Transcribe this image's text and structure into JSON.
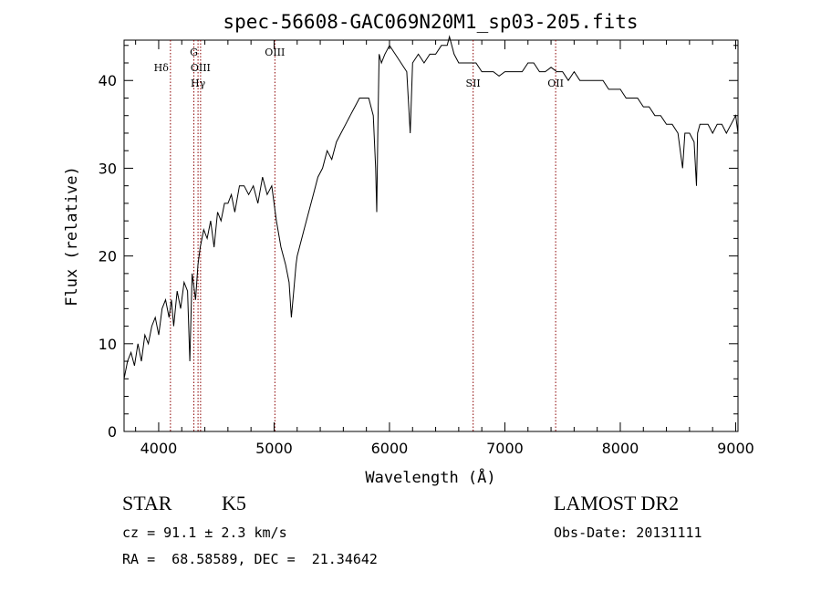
{
  "chart_data": {
    "type": "line",
    "title": "spec-56608-GAC069N20M1_sp03-205.fits",
    "xlabel": "Wavelength (Å)",
    "ylabel": "Flux (relative)",
    "xlim": [
      3700,
      9020
    ],
    "ylim": [
      0,
      44.6
    ],
    "xticks": [
      4000,
      5000,
      6000,
      7000,
      8000,
      9000
    ],
    "yticks": [
      0,
      10,
      20,
      30,
      40
    ],
    "grid": false,
    "line_color": "#000000",
    "marker_color": "#8b0000",
    "series": [
      {
        "x": [
          3700,
          3730,
          3760,
          3790,
          3820,
          3850,
          3880,
          3910,
          3940,
          3970,
          4000,
          4030,
          4060,
          4090,
          4110,
          4130,
          4160,
          4190,
          4220,
          4250,
          4270,
          4290,
          4300,
          4320,
          4340,
          4360,
          4390,
          4420,
          4450,
          4480,
          4510,
          4540,
          4570,
          4600,
          4630,
          4660,
          4700,
          4740,
          4780,
          4820,
          4860,
          4900,
          4940,
          4980,
          5020,
          5060,
          5100,
          5130,
          5150,
          5170,
          5190,
          5200,
          5220,
          5260,
          5300,
          5340,
          5380,
          5420,
          5460,
          5500,
          5540,
          5580,
          5620,
          5660,
          5700,
          5740,
          5780,
          5820,
          5860,
          5880,
          5890,
          5900,
          5910,
          5930,
          5960,
          6000,
          6050,
          6100,
          6150,
          6180,
          6200,
          6250,
          6300,
          6350,
          6400,
          6450,
          6500,
          6520,
          6560,
          6600,
          6650,
          6700,
          6750,
          6800,
          6850,
          6900,
          6950,
          7000,
          7050,
          7100,
          7150,
          7200,
          7250,
          7300,
          7350,
          7400,
          7450,
          7500,
          7550,
          7600,
          7650,
          7700,
          7750,
          7800,
          7850,
          7900,
          7950,
          8000,
          8050,
          8100,
          8150,
          8200,
          8250,
          8300,
          8350,
          8400,
          8450,
          8500,
          8520,
          8540,
          8560,
          8600,
          8640,
          8660,
          8670,
          8690,
          8720,
          8760,
          8800,
          8840,
          8880,
          8920,
          8960,
          9000,
          9020
        ],
        "y": [
          6,
          8,
          9,
          7.5,
          10,
          8,
          11,
          10,
          12,
          13,
          11,
          14,
          15,
          13,
          15,
          12,
          16,
          14,
          17,
          16,
          8,
          18,
          17,
          15,
          19,
          21,
          23,
          22,
          24,
          21,
          25,
          24,
          26,
          26,
          27,
          25,
          28,
          28,
          27,
          28,
          26,
          29,
          27,
          28,
          24,
          21,
          19,
          17,
          13,
          16,
          19,
          20,
          21,
          23,
          25,
          27,
          29,
          30,
          32,
          31,
          33,
          34,
          35,
          36,
          37,
          38,
          38,
          38,
          36,
          30,
          25,
          35,
          43,
          42,
          43,
          44,
          43,
          42,
          41,
          34,
          42,
          43,
          42,
          43,
          43,
          44,
          44,
          45,
          43,
          42,
          42,
          42,
          42,
          41,
          41,
          41,
          40.5,
          41,
          41,
          41,
          41,
          42,
          42,
          41,
          41,
          41.5,
          41,
          41,
          40,
          41,
          40,
          40,
          40,
          40,
          40,
          39,
          39,
          39,
          38,
          38,
          38,
          37,
          37,
          36,
          36,
          35,
          35,
          34,
          32,
          30,
          34,
          34,
          33,
          28,
          34,
          35,
          35,
          35,
          34,
          35,
          35,
          34,
          35,
          36,
          34
        ]
      }
    ],
    "lines": [
      {
        "x": 4102,
        "labels": [
          "Hδ"
        ]
      },
      {
        "x": 4305,
        "labels": [
          "G"
        ]
      },
      {
        "x": 4341,
        "labels": [
          "Hγ"
        ]
      },
      {
        "x": 4363,
        "labels": [
          "OIII"
        ]
      },
      {
        "x": 5007,
        "labels": [
          "OIII"
        ]
      },
      {
        "x": 6725,
        "labels": [
          "SII"
        ]
      },
      {
        "x": 7440,
        "labels": [
          "OII"
        ]
      }
    ]
  },
  "info": {
    "object_class": "STAR",
    "subclass": "K5",
    "survey": "LAMOST DR2",
    "cz": "cz = 91.1 ± 2.3 km/s",
    "obs_date": "Obs-Date: 20131111",
    "coords": "RA =  68.58589, DEC =  21.34642"
  }
}
